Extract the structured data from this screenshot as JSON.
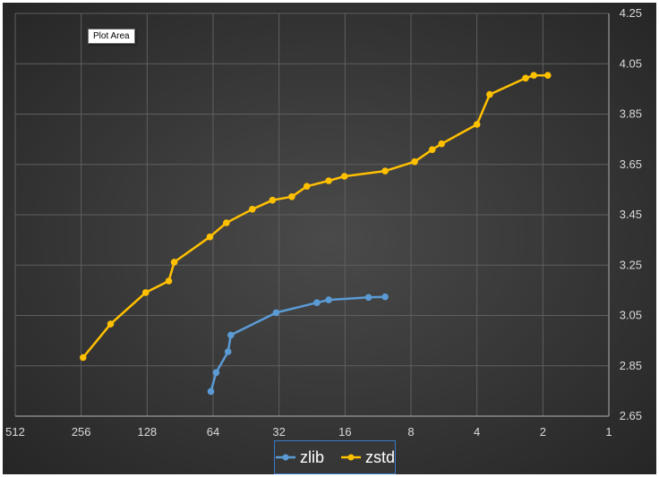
{
  "tooltip": "Plot Area",
  "chart_data": {
    "type": "line",
    "x_axis": {
      "scale": "log2",
      "reversed": true,
      "ticks": [
        "512",
        "256",
        "128",
        "64",
        "32",
        "16",
        "8",
        "4",
        "2",
        "1"
      ],
      "range": [
        512,
        1
      ]
    },
    "y_axis": {
      "ticks": [
        "2.65",
        "2.85",
        "3.05",
        "3.25",
        "3.45",
        "3.65",
        "3.85",
        "4.05",
        "4.25"
      ],
      "range": [
        2.65,
        4.25
      ],
      "position": "right"
    },
    "grid": true,
    "legend": "bottom",
    "series": [
      {
        "name": "zlib",
        "color": "#5b9bd5",
        "x": [
          65.5,
          62,
          54.7,
          53.1,
          33,
          21.5,
          19,
          12.5,
          10.5
        ],
        "y": [
          2.748,
          2.823,
          2.906,
          2.972,
          3.061,
          3.101,
          3.112,
          3.122,
          3.124
        ]
      },
      {
        "name": "zstd",
        "color": "#ffc000",
        "x": [
          251,
          188,
          130,
          102,
          96.3,
          66.2,
          55.7,
          42.4,
          34.3,
          28,
          23.9,
          19,
          16.1,
          10.5,
          7.7,
          6.4,
          5.8,
          4,
          3.5,
          2.4,
          2.2,
          1.9
        ],
        "y": [
          2.883,
          3.016,
          3.141,
          3.187,
          3.262,
          3.362,
          3.418,
          3.472,
          3.508,
          3.522,
          3.563,
          3.585,
          3.603,
          3.624,
          3.661,
          3.709,
          3.732,
          3.809,
          3.928,
          3.993,
          4.004,
          4.004
        ]
      }
    ]
  }
}
